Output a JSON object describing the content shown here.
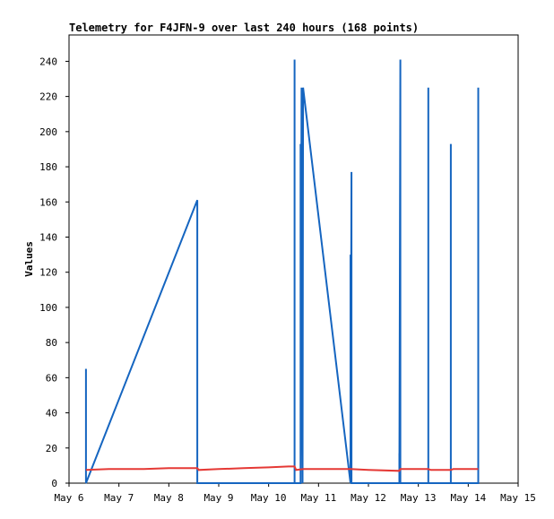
{
  "chart_data": {
    "type": "line",
    "title": "Telemetry for F4JFN-9 over last 240 hours (168 points)",
    "ylabel": "Values",
    "xlabel": "",
    "ylim": [
      0,
      255
    ],
    "xlim": [
      6.0,
      15.0
    ],
    "x_unit": "day of May",
    "yticks": [
      0,
      20,
      40,
      60,
      80,
      100,
      120,
      140,
      160,
      180,
      200,
      220,
      240
    ],
    "xticks": [
      {
        "value": 6,
        "label": "May 6"
      },
      {
        "value": 7,
        "label": "May 7"
      },
      {
        "value": 8,
        "label": "May 8"
      },
      {
        "value": 9,
        "label": "May 9"
      },
      {
        "value": 10,
        "label": "May 10"
      },
      {
        "value": 11,
        "label": "May 11"
      },
      {
        "value": 12,
        "label": "May 12"
      },
      {
        "value": 13,
        "label": "May 13"
      },
      {
        "value": 14,
        "label": "May 14"
      },
      {
        "value": 15,
        "label": "May 15"
      }
    ],
    "grid": false,
    "series": [
      {
        "color": "#1565c0",
        "points": [
          [
            6.34,
            0
          ],
          [
            6.34,
            65
          ],
          [
            6.34,
            0
          ],
          [
            8.57,
            161
          ],
          [
            8.57,
            0
          ],
          [
            10.52,
            0
          ],
          [
            10.52,
            241
          ],
          [
            10.52,
            0
          ],
          [
            10.64,
            0
          ],
          [
            10.64,
            193
          ],
          [
            10.64,
            0
          ],
          [
            10.66,
            225
          ],
          [
            10.68,
            0
          ],
          [
            10.69,
            225
          ],
          [
            11.64,
            0
          ],
          [
            11.64,
            130
          ],
          [
            11.64,
            0
          ],
          [
            11.66,
            177
          ],
          [
            11.66,
            0
          ],
          [
            12.62,
            0
          ],
          [
            12.62,
            17
          ],
          [
            12.62,
            0
          ],
          [
            12.64,
            241
          ],
          [
            12.64,
            0
          ],
          [
            13.2,
            0
          ],
          [
            13.2,
            225
          ],
          [
            13.2,
            0
          ],
          [
            13.65,
            0
          ],
          [
            13.65,
            193
          ],
          [
            13.65,
            0
          ],
          [
            14.2,
            0
          ],
          [
            14.2,
            225
          ],
          [
            14.2,
            0
          ]
        ]
      },
      {
        "color": "#e53935",
        "points": [
          [
            6.34,
            7.5
          ],
          [
            6.8,
            8
          ],
          [
            7.5,
            8
          ],
          [
            8.0,
            8.5
          ],
          [
            8.57,
            8.5
          ],
          [
            8.6,
            7.5
          ],
          [
            9.0,
            8
          ],
          [
            9.5,
            8.5
          ],
          [
            10.0,
            9
          ],
          [
            10.4,
            9.5
          ],
          [
            10.52,
            9.5
          ],
          [
            10.55,
            7.5
          ],
          [
            10.7,
            8
          ],
          [
            11.0,
            8
          ],
          [
            11.64,
            8
          ],
          [
            12.0,
            7.5
          ],
          [
            12.62,
            7
          ],
          [
            12.64,
            8
          ],
          [
            13.2,
            8
          ],
          [
            13.25,
            7.5
          ],
          [
            13.65,
            7.5
          ],
          [
            13.7,
            8
          ],
          [
            14.2,
            8
          ]
        ]
      }
    ]
  }
}
